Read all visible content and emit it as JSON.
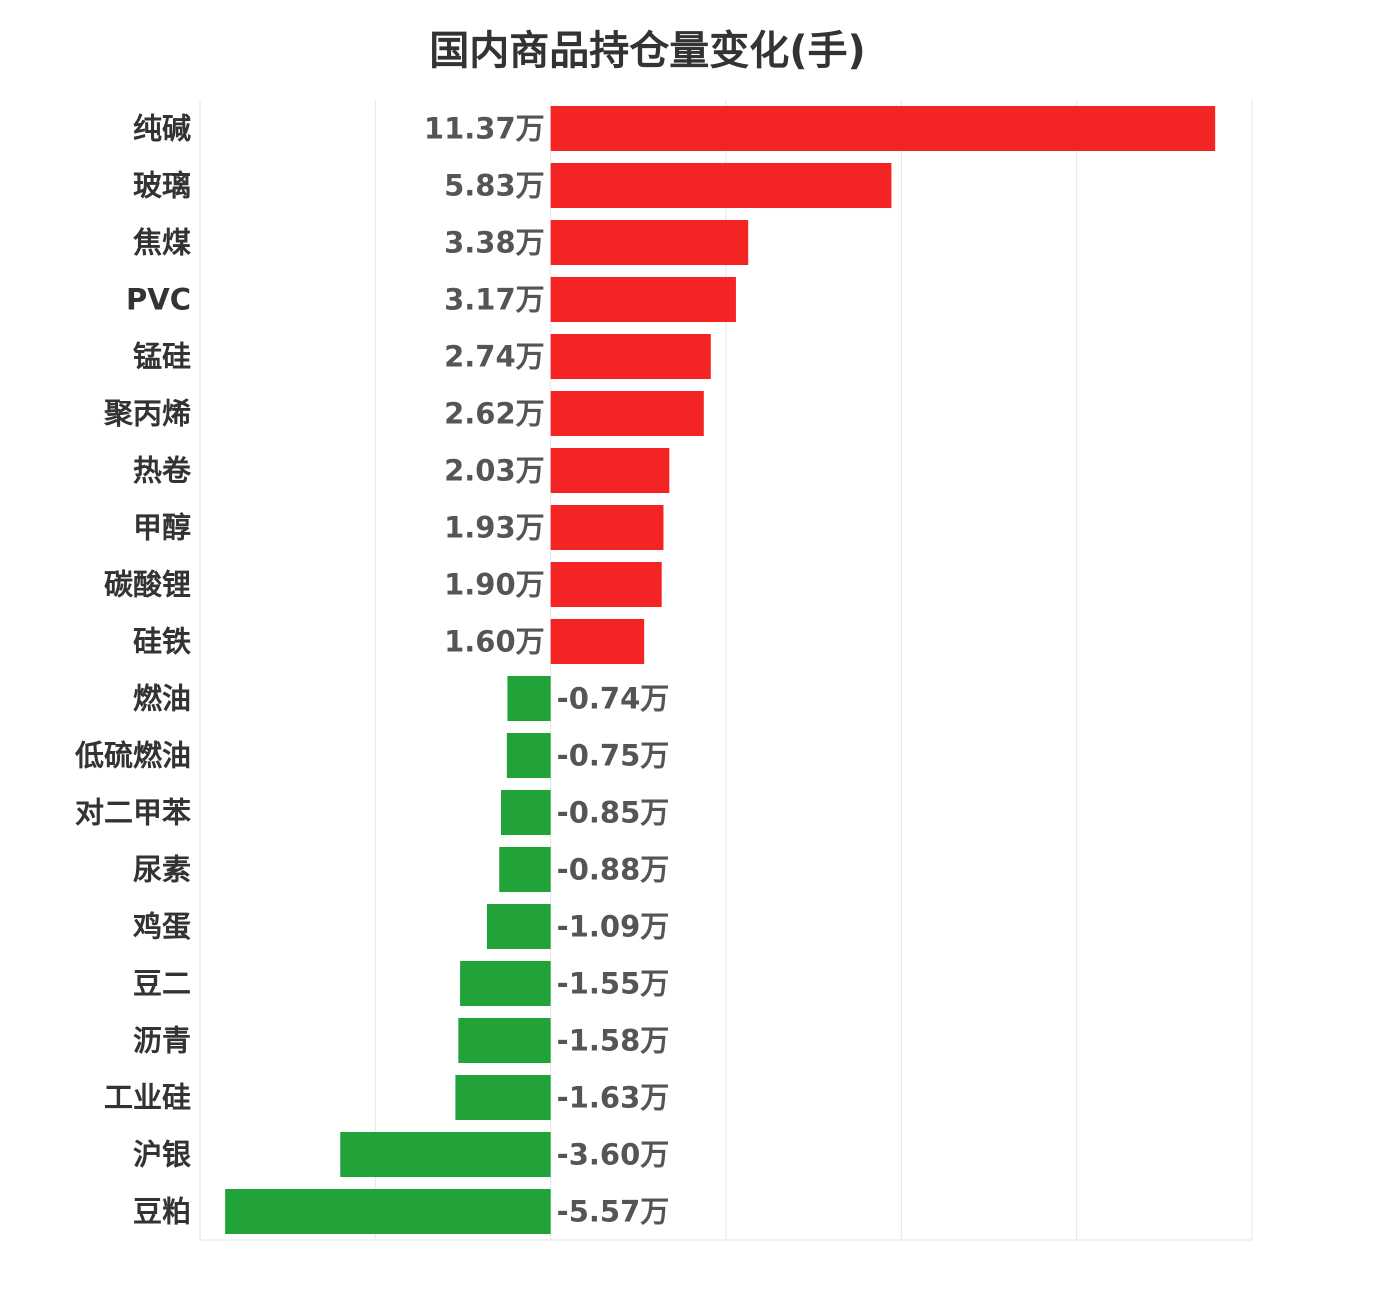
{
  "chart_data": {
    "type": "bar",
    "orientation": "horizontal",
    "title": "国内商品持仓量变化(手)",
    "categories": [
      "纯碱",
      "玻璃",
      "焦煤",
      "PVC",
      "锰硅",
      "聚丙烯",
      "热卷",
      "甲醇",
      "碳酸锂",
      "硅铁",
      "燃油",
      "低硫燃油",
      "对二甲苯",
      "尿素",
      "鸡蛋",
      "豆二",
      "沥青",
      "工业硅",
      "沪银",
      "豆粕"
    ],
    "values": [
      11.37,
      5.83,
      3.38,
      3.17,
      2.74,
      2.62,
      2.03,
      1.93,
      1.9,
      1.6,
      -0.74,
      -0.75,
      -0.85,
      -0.88,
      -1.09,
      -1.55,
      -1.58,
      -1.63,
      -3.6,
      -5.57
    ],
    "value_labels": [
      "11.37万",
      "5.83万",
      "3.38万",
      "3.17万",
      "2.74万",
      "2.62万",
      "2.03万",
      "1.93万",
      "1.90万",
      "1.60万",
      "-0.74万",
      "-0.75万",
      "-0.85万",
      "-0.88万",
      "-1.09万",
      "-1.55万",
      "-1.58万",
      "-1.63万",
      "-3.60万",
      "-5.57万"
    ],
    "xlim": [
      -6,
      12
    ],
    "grid": true,
    "legend": "none",
    "colors": {
      "positive": "#f52424",
      "negative": "#21a33a",
      "grid": "#e6e6e6"
    }
  }
}
